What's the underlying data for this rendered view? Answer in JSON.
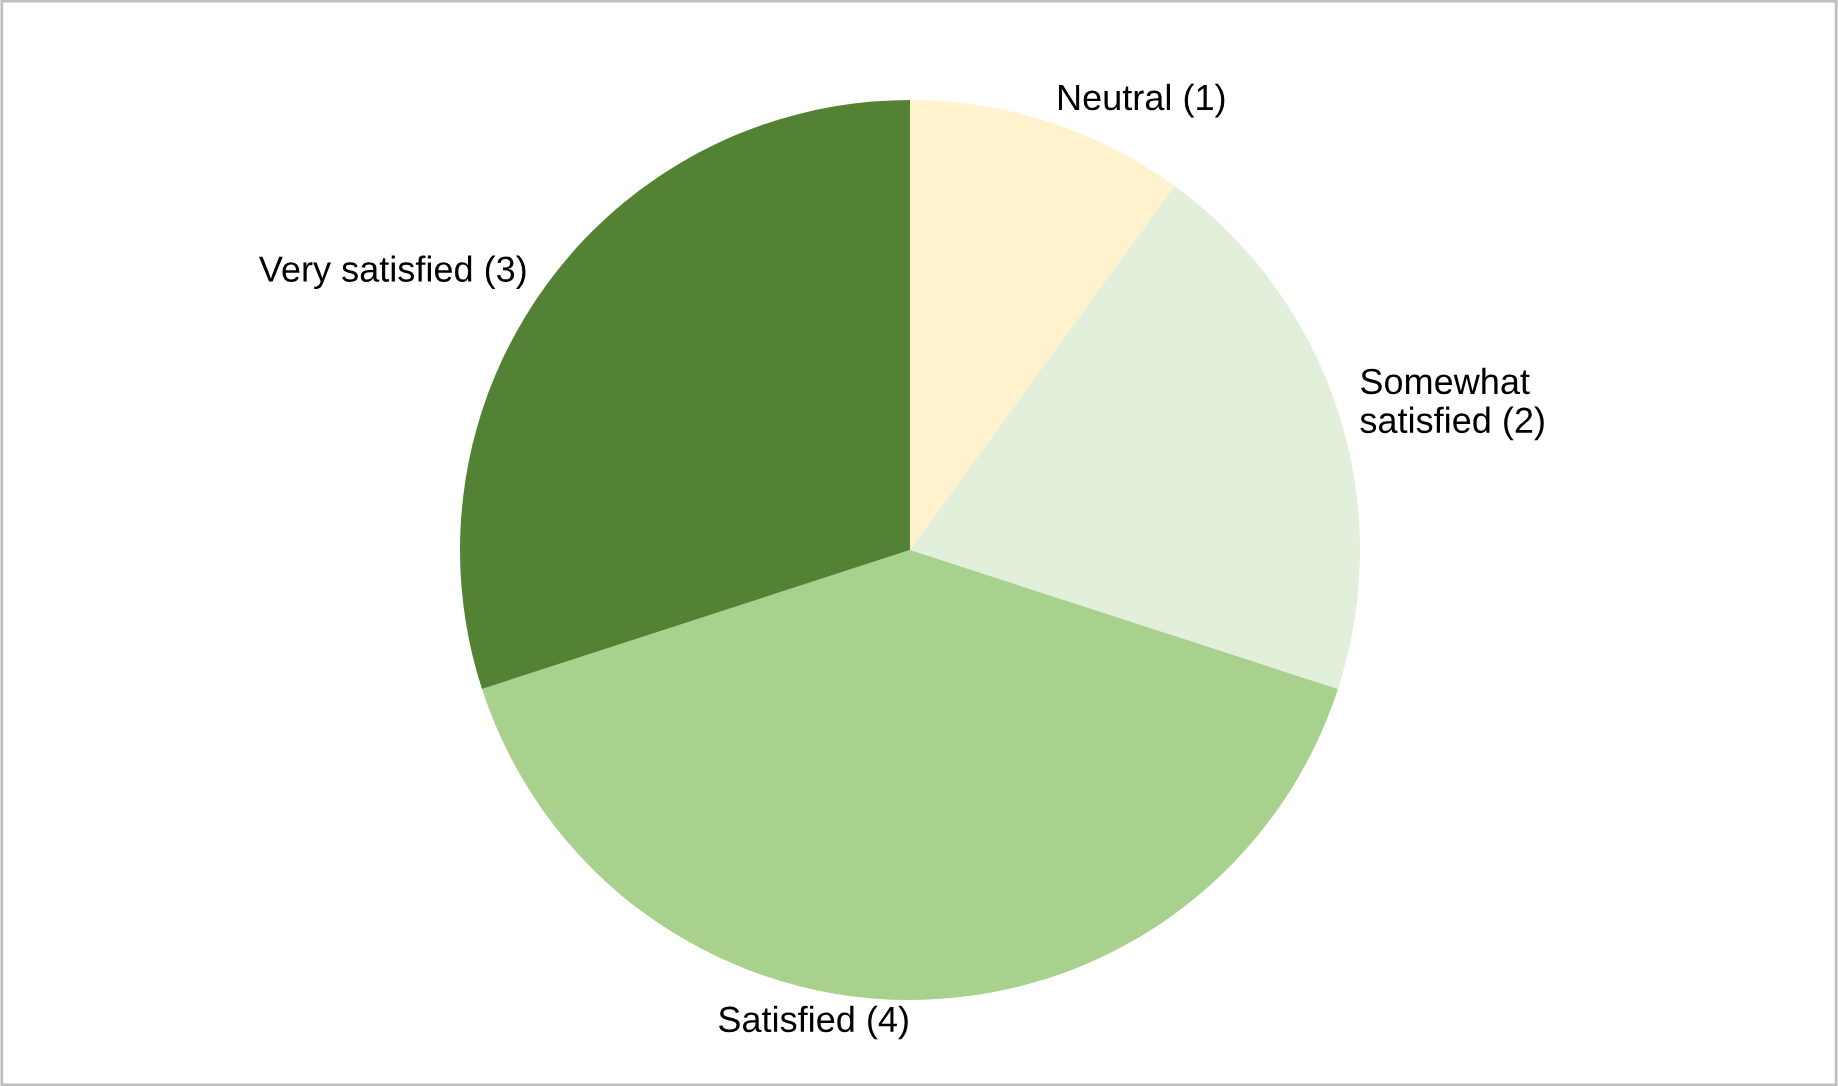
{
  "chart_data": {
    "type": "pie",
    "categories": [
      "Neutral (1)",
      "Somewhat\nsatisfied (2)",
      "Satisfied (4)",
      "Very satisfied (3)"
    ],
    "values": [
      1,
      2,
      4,
      3
    ],
    "colors": [
      "#fff2cc",
      "#e2efda",
      "#a9d18e",
      "#548235"
    ]
  }
}
